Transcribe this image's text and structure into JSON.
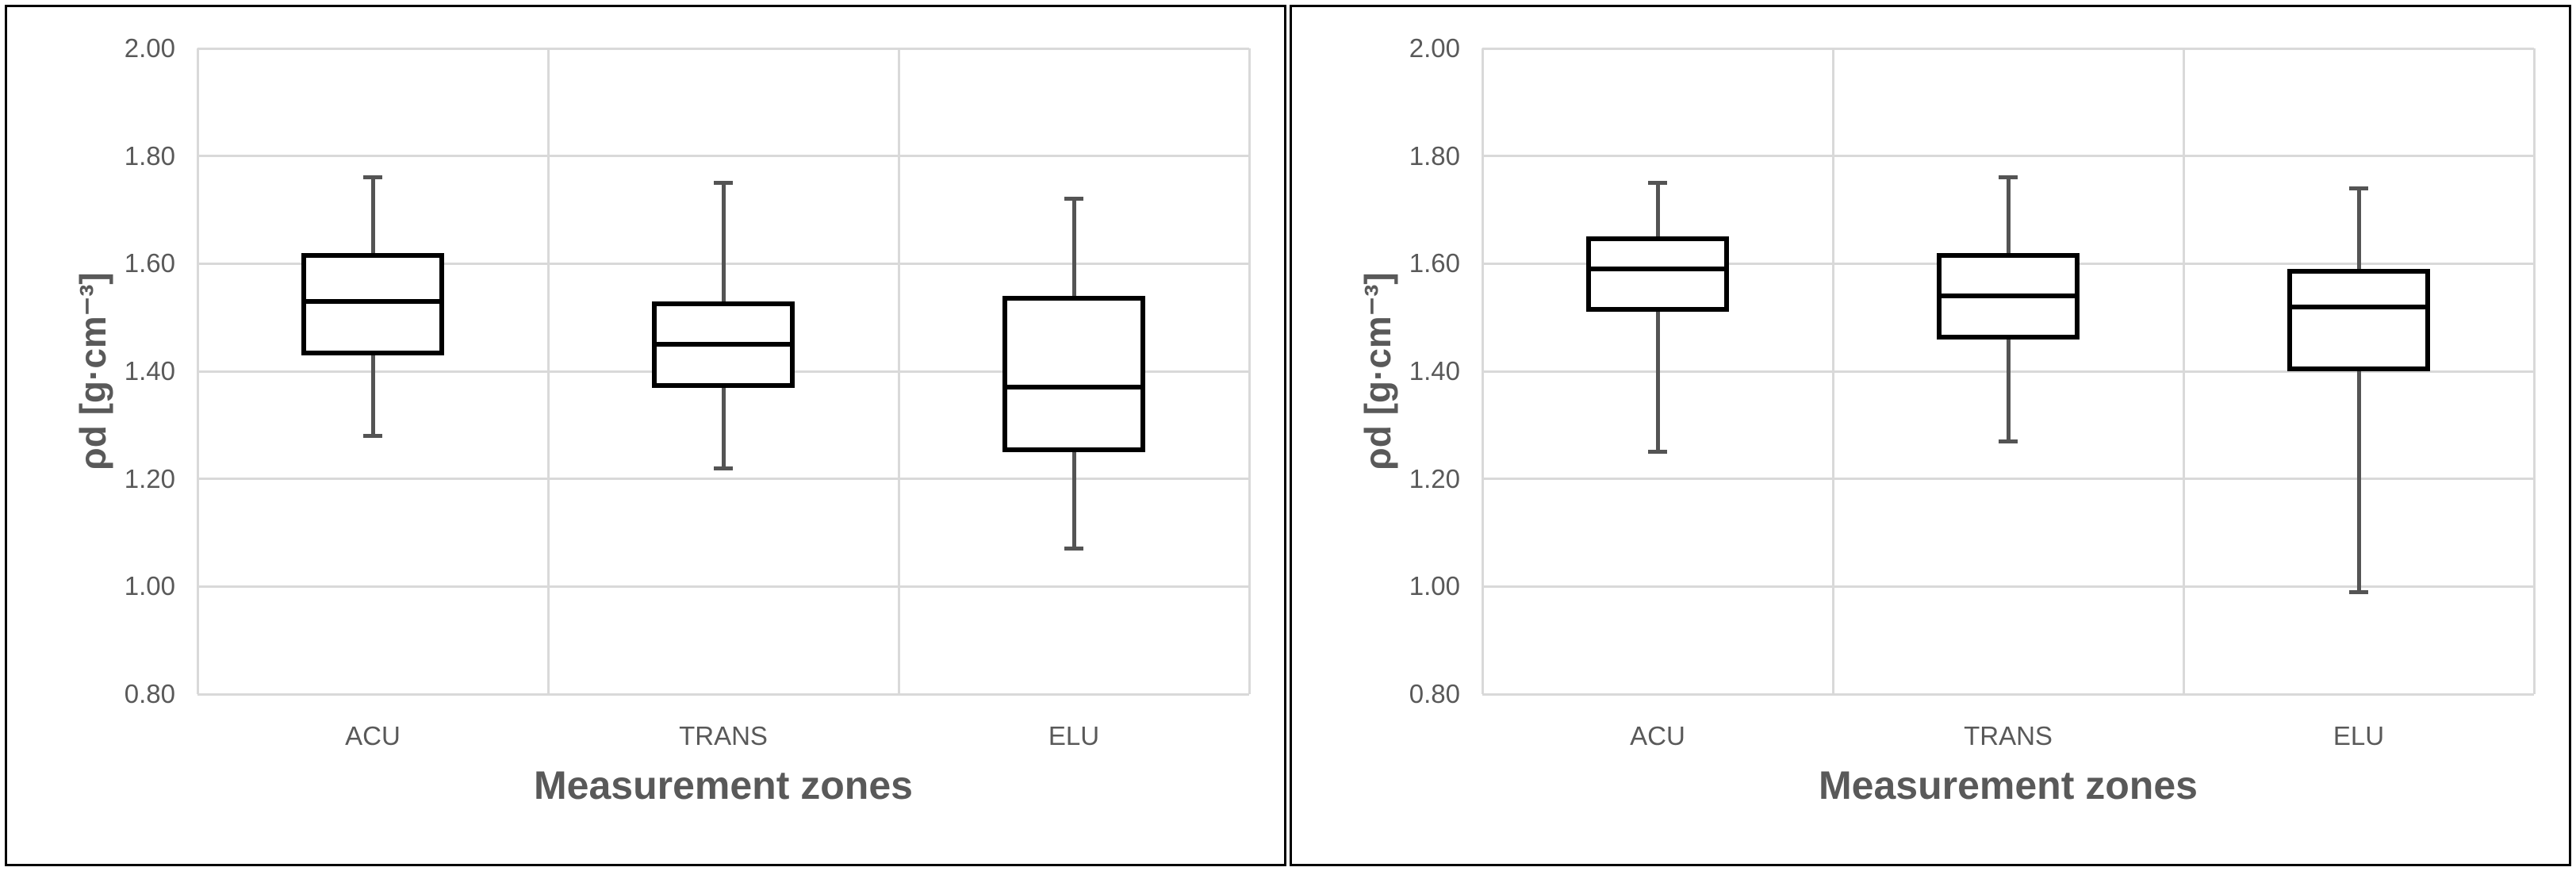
{
  "figure": {
    "background": "#ffffff",
    "panel_count": 2
  },
  "chart_data": [
    {
      "type": "boxplot",
      "panel": "left",
      "title": "",
      "xlabel": "Measurement zones",
      "ylabel": "ρd [g·cm⁻³]",
      "categories": [
        "ACU",
        "TRANS",
        "ELU"
      ],
      "series": [
        {
          "name": "ACU",
          "whisker_low": 1.28,
          "q1": 1.43,
          "median": 1.53,
          "q3": 1.62,
          "whisker_high": 1.76
        },
        {
          "name": "TRANS",
          "whisker_low": 1.22,
          "q1": 1.37,
          "median": 1.45,
          "q3": 1.53,
          "whisker_high": 1.75
        },
        {
          "name": "ELU",
          "whisker_low": 1.07,
          "q1": 1.25,
          "median": 1.37,
          "q3": 1.54,
          "whisker_high": 1.72
        }
      ],
      "ylim": [
        0.8,
        2.0
      ],
      "ytick_step": 0.2,
      "yticks": [
        "2.00",
        "1.80",
        "1.60",
        "1.40",
        "1.20",
        "1.00",
        "0.80"
      ],
      "grid": true,
      "legend_position": "none"
    },
    {
      "type": "boxplot",
      "panel": "right",
      "title": "",
      "xlabel": "Measurement zones",
      "ylabel": "ρd [g·cm⁻³]",
      "categories": [
        "ACU",
        "TRANS",
        "ELU"
      ],
      "series": [
        {
          "name": "ACU",
          "whisker_low": 1.25,
          "q1": 1.51,
          "median": 1.59,
          "q3": 1.65,
          "whisker_high": 1.75
        },
        {
          "name": "TRANS",
          "whisker_low": 1.27,
          "q1": 1.46,
          "median": 1.54,
          "q3": 1.62,
          "whisker_high": 1.76
        },
        {
          "name": "ELU",
          "whisker_low": 0.99,
          "q1": 1.4,
          "median": 1.52,
          "q3": 1.59,
          "whisker_high": 1.74
        }
      ],
      "ylim": [
        0.8,
        2.0
      ],
      "ytick_step": 0.2,
      "yticks": [
        "2.00",
        "1.80",
        "1.60",
        "1.40",
        "1.20",
        "1.00",
        "0.80"
      ],
      "grid": true,
      "legend_position": "none"
    }
  ],
  "colors": {
    "gridline": "#d9d9d9",
    "box_border": "#000000",
    "median": "#000000",
    "whisker": "#545454",
    "tick_label": "#595959",
    "axis_title": "#595959",
    "panel_border": "#000000",
    "background": "#ffffff"
  }
}
